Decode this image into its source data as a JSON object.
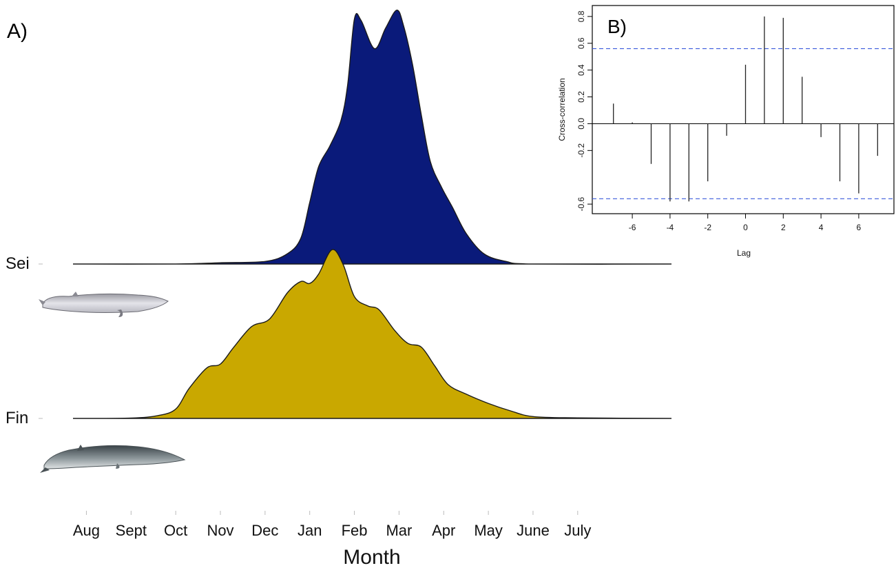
{
  "chart_data": [
    {
      "panel": "A)",
      "type": "area",
      "subtype": "ridgeline-density",
      "xlabel": "Month",
      "ylabel": "",
      "categories": [
        "Aug",
        "Sept",
        "Oct",
        "Nov",
        "Dec",
        "Jan",
        "Feb",
        "Mar",
        "Apr",
        "May",
        "June",
        "July"
      ],
      "xlim": [
        -0.3,
        13.1
      ],
      "grid": false,
      "series": [
        {
          "name": "Sei",
          "color": "#0a1a7a",
          "points": [
            [
              -0.3,
              0.0
            ],
            [
              2.0,
              0.0
            ],
            [
              3.0,
              0.005
            ],
            [
              4.0,
              0.01
            ],
            [
              4.5,
              0.04
            ],
            [
              4.8,
              0.1
            ],
            [
              5.0,
              0.24
            ],
            [
              5.2,
              0.38
            ],
            [
              5.45,
              0.46
            ],
            [
              5.7,
              0.56
            ],
            [
              5.85,
              0.7
            ],
            [
              6.0,
              0.955
            ],
            [
              6.15,
              0.95
            ],
            [
              6.45,
              0.84
            ],
            [
              6.7,
              0.92
            ],
            [
              6.95,
              0.99
            ],
            [
              7.1,
              0.93
            ],
            [
              7.3,
              0.78
            ],
            [
              7.5,
              0.58
            ],
            [
              7.7,
              0.4
            ],
            [
              7.95,
              0.3
            ],
            [
              8.2,
              0.22
            ],
            [
              8.5,
              0.12
            ],
            [
              8.9,
              0.04
            ],
            [
              9.4,
              0.01
            ],
            [
              10.0,
              0.0
            ],
            [
              13.1,
              0.0
            ]
          ]
        },
        {
          "name": "Fin",
          "color": "#c9a800",
          "points": [
            [
              -0.3,
              0.0
            ],
            [
              1.0,
              0.002
            ],
            [
              1.6,
              0.015
            ],
            [
              2.0,
              0.05
            ],
            [
              2.3,
              0.16
            ],
            [
              2.7,
              0.27
            ],
            [
              3.0,
              0.29
            ],
            [
              3.3,
              0.38
            ],
            [
              3.7,
              0.49
            ],
            [
              4.1,
              0.53
            ],
            [
              4.5,
              0.67
            ],
            [
              4.8,
              0.73
            ],
            [
              5.0,
              0.72
            ],
            [
              5.2,
              0.77
            ],
            [
              5.5,
              0.9
            ],
            [
              5.75,
              0.82
            ],
            [
              6.0,
              0.65
            ],
            [
              6.3,
              0.6
            ],
            [
              6.55,
              0.58
            ],
            [
              6.9,
              0.47
            ],
            [
              7.2,
              0.4
            ],
            [
              7.5,
              0.38
            ],
            [
              7.8,
              0.28
            ],
            [
              8.1,
              0.18
            ],
            [
              8.5,
              0.13
            ],
            [
              9.0,
              0.08
            ],
            [
              9.5,
              0.04
            ],
            [
              10.0,
              0.01
            ],
            [
              11.0,
              0.003
            ],
            [
              13.1,
              0.0
            ]
          ]
        }
      ],
      "row_labels": [
        "Sei",
        "Fin"
      ],
      "illustrations": [
        "sei-whale-illustration",
        "fin-whale-illustration"
      ]
    },
    {
      "panel": "B)",
      "type": "bar",
      "subtype": "cross-correlation-lollipop",
      "xlabel": "Lag",
      "ylabel": "Cross-correlation",
      "x": [
        -7,
        -6,
        -5,
        -4,
        -3,
        -2,
        -1,
        0,
        1,
        2,
        3,
        4,
        5,
        6,
        7
      ],
      "values": [
        0.15,
        0.01,
        -0.3,
        -0.58,
        -0.58,
        -0.43,
        -0.09,
        0.44,
        0.8,
        0.79,
        0.35,
        -0.1,
        -0.43,
        -0.52,
        -0.24
      ],
      "xticks": [
        "-6",
        "-4",
        "-2",
        "0",
        "2",
        "4",
        "6"
      ],
      "yticks": [
        "-0.6",
        "-0.2",
        "0.0",
        "0.2",
        "0.4",
        "0.6",
        "0.8"
      ],
      "xlim": [
        -7.5,
        7.5
      ],
      "ylim": [
        -0.62,
        0.82
      ],
      "confidence_bound": 0.56,
      "bound_color": "#3a5bdc",
      "grid": false
    }
  ]
}
